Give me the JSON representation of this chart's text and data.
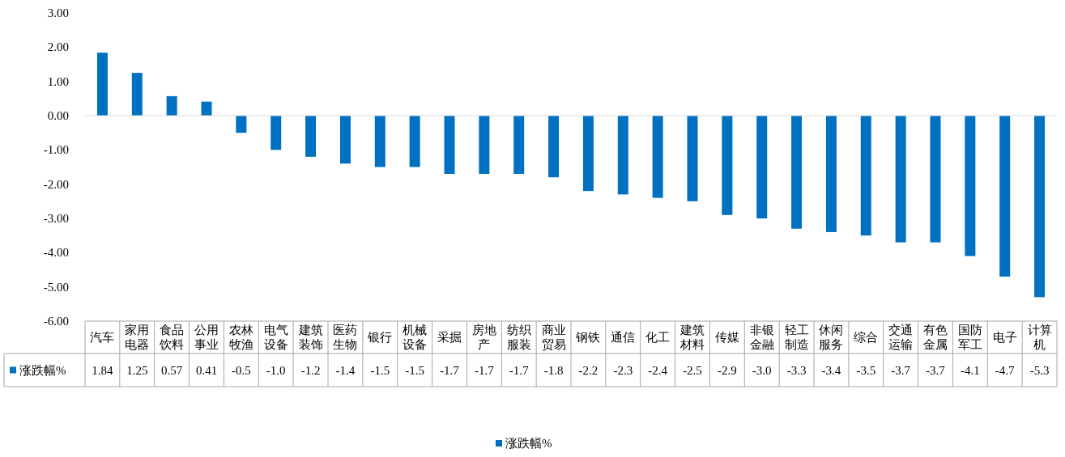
{
  "chart_data": {
    "type": "bar",
    "categories": [
      "汽车",
      "家用电器",
      "食品饮料",
      "公用事业",
      "农林牧渔",
      "电气设备",
      "建筑装饰",
      "医药生物",
      "银行",
      "机械设备",
      "采掘",
      "房地产",
      "纺织服装",
      "商业贸易",
      "钢铁",
      "通信",
      "化工",
      "建筑材料",
      "传媒",
      "非银金融",
      "轻工制造",
      "休闲服务",
      "综合",
      "交通运输",
      "有色金属",
      "国防军工",
      "电子",
      "计算机"
    ],
    "series": [
      {
        "name": "涨跌幅%",
        "color": "#0070c0",
        "values": [
          1.84,
          1.25,
          0.57,
          0.41,
          -0.5,
          -1.0,
          -1.2,
          -1.4,
          -1.5,
          -1.5,
          -1.7,
          -1.7,
          -1.7,
          -1.8,
          -2.2,
          -2.3,
          -2.4,
          -2.5,
          -2.9,
          -3.0,
          -3.3,
          -3.4,
          -3.5,
          -3.7,
          -3.7,
          -4.1,
          -4.7,
          -5.3
        ]
      }
    ],
    "ylim": [
      -6,
      3
    ],
    "yticks": [
      {
        "value": 3,
        "label": "3.00"
      },
      {
        "value": 2,
        "label": "2.00"
      },
      {
        "value": 1,
        "label": "1.00"
      },
      {
        "value": 0,
        "label": "0.00"
      },
      {
        "value": -1,
        "label": "-1.00"
      },
      {
        "value": -2,
        "label": "-2.00"
      },
      {
        "value": -3,
        "label": "-3.00"
      },
      {
        "value": -4,
        "label": "-4.00"
      },
      {
        "value": -5,
        "label": "-5.00"
      },
      {
        "value": -6,
        "label": "-6.00"
      }
    ],
    "value_labels": [
      "1.84",
      "1.25",
      "0.57",
      "0.41",
      "-0.5",
      "-1.0",
      "-1.2",
      "-1.4",
      "-1.5",
      "-1.5",
      "-1.7",
      "-1.7",
      "-1.7",
      "-1.8",
      "-2.2",
      "-2.3",
      "-2.4",
      "-2.5",
      "-2.9",
      "-3.0",
      "-3.3",
      "-3.4",
      "-3.5",
      "-3.7",
      "-3.7",
      "-4.1",
      "-4.7",
      "-5.3"
    ],
    "legend": "bottom"
  }
}
